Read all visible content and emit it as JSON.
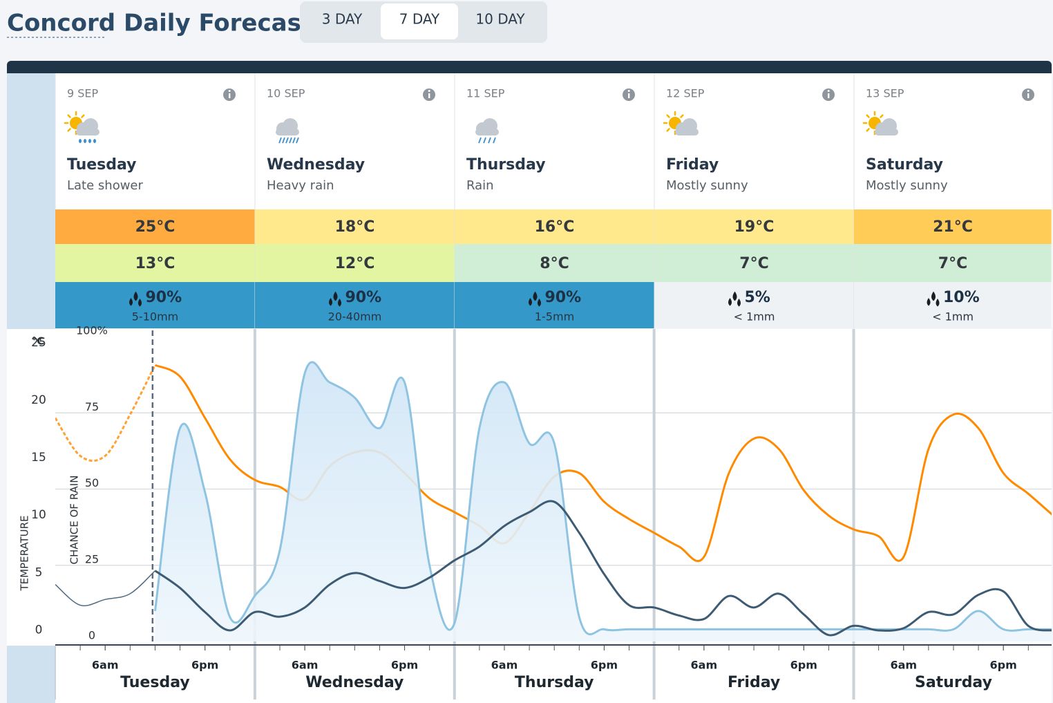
{
  "header": {
    "title": "Concord Daily Forecast",
    "tabs": [
      "3 DAY",
      "7 DAY",
      "10 DAY"
    ],
    "active_tab": 1
  },
  "days": [
    {
      "date": "9 SEP",
      "icon": "sun_cloud_rain",
      "name": "Tuesday",
      "description": "Late shower",
      "high": "25°C",
      "high_color": "#ffab40",
      "low": "13°C",
      "low_color": "#e3f5a1",
      "rain_chance": "90%",
      "rain_amount": "5-10mm",
      "rain_color": "#3498c9"
    },
    {
      "date": "10 SEP",
      "icon": "cloud_heavy_rain",
      "name": "Wednesday",
      "description": "Heavy rain",
      "high": "18°C",
      "high_color": "#ffe98c",
      "low": "12°C",
      "low_color": "#e3f5a1",
      "rain_chance": "90%",
      "rain_amount": "20-40mm",
      "rain_color": "#3498c9"
    },
    {
      "date": "11 SEP",
      "icon": "cloud_rain",
      "name": "Thursday",
      "description": "Rain",
      "high": "16°C",
      "high_color": "#ffe98c",
      "low": "8°C",
      "low_color": "#d0eed6",
      "rain_chance": "90%",
      "rain_amount": "1-5mm",
      "rain_color": "#3498c9"
    },
    {
      "date": "12 SEP",
      "icon": "sun_cloud",
      "name": "Friday",
      "description": "Mostly sunny",
      "high": "19°C",
      "high_color": "#ffe98c",
      "low": "7°C",
      "low_color": "#d0eed6",
      "rain_chance": "5%",
      "rain_amount": "< 1mm",
      "rain_color": "#eff2f5"
    },
    {
      "date": "13 SEP",
      "icon": "sun_cloud",
      "name": "Saturday",
      "description": "Mostly sunny",
      "high": "21°C",
      "high_color": "#ffcd57",
      "low": "7°C",
      "low_color": "#d0eed6",
      "rain_chance": "10%",
      "rain_amount": "< 1mm",
      "rain_color": "#eff2f5"
    }
  ],
  "chart_data": {
    "type": "line",
    "y_unit": "°C",
    "y_label": "TEMPERATURE",
    "y2_label": "CHANCE OF RAIN",
    "xlim": [
      0,
      119.8
    ],
    "ylim": [
      -0.4,
      26.8
    ],
    "yticks": [
      0,
      5,
      10,
      15,
      20,
      25
    ],
    "y2lim": [
      -0.9,
      101.6
    ],
    "y2ticks": [
      0,
      25,
      50,
      75,
      {
        "value": 100,
        "label": "100%"
      }
    ],
    "xticks": [
      {
        "value": 6,
        "label": "6am"
      },
      {
        "value": 18,
        "label": "6pm"
      },
      {
        "value": 30,
        "label": "6am"
      },
      {
        "value": 42,
        "label": "6pm"
      },
      {
        "value": 54,
        "label": "6am"
      },
      {
        "value": 66,
        "label": "6pm"
      },
      {
        "value": 78,
        "label": "6am"
      },
      {
        "value": 90,
        "label": "6pm"
      },
      {
        "value": 102,
        "label": "6am"
      },
      {
        "value": 114,
        "label": "6pm"
      }
    ],
    "day_labels": [
      {
        "value": 12,
        "label": "Tuesday"
      },
      {
        "value": 36,
        "label": "Wednesday"
      },
      {
        "value": 60,
        "label": "Thursday"
      },
      {
        "value": 84,
        "label": "Friday"
      },
      {
        "value": 108,
        "label": "Saturday"
      }
    ],
    "day_bounds": [
      24,
      48,
      72,
      96
    ],
    "now": 11.7,
    "grid": true,
    "x": [
      0,
      3,
      6,
      9,
      12,
      15,
      18,
      21,
      24,
      27,
      30,
      33,
      36,
      39,
      42,
      45,
      48,
      51,
      54,
      57,
      60,
      63,
      66,
      69,
      72,
      75,
      78,
      81,
      84,
      87,
      90,
      93,
      96,
      99,
      102,
      105,
      108,
      111,
      114,
      117,
      120
    ],
    "series": [
      {
        "key": "temperature",
        "color": "#ff8a00",
        "axis": "y",
        "values": [
          19.3,
          16.0,
          16.0,
          19.6,
          23.9,
          22.9,
          19.3,
          15.7,
          13.9,
          13.3,
          12.2,
          15.1,
          16.3,
          16.3,
          14.5,
          12.3,
          11.1,
          9.9,
          8.4,
          11.1,
          14.2,
          14.5,
          12.0,
          10.5,
          9.3,
          8.1,
          7.2,
          14.5,
          17.5,
          16.6,
          13.0,
          10.8,
          9.6,
          9.0,
          7.2,
          16.6,
          19.6,
          18.4,
          14.5,
          12.7,
          10.8
        ]
      },
      {
        "key": "rain_chance",
        "color": "#8ec4e2",
        "axis": "y2",
        "values": [
          null,
          null,
          null,
          null,
          10,
          70,
          49,
          8,
          15,
          30,
          88,
          85,
          80,
          70,
          85,
          25,
          6,
          70,
          85,
          65,
          65,
          8,
          4,
          4,
          4,
          4,
          4,
          4,
          4,
          4,
          4,
          4,
          4,
          4,
          4,
          4,
          4,
          10,
          4,
          4,
          4
        ]
      },
      {
        "key": "wind",
        "color": "#3e5b74",
        "axis": "y",
        "values": [
          4.8,
          3.0,
          3.5,
          4.0,
          6.0,
          4.5,
          2.4,
          0.8,
          2.4,
          2.0,
          2.8,
          4.8,
          5.8,
          5.1,
          4.5,
          5.4,
          6.9,
          8.1,
          9.9,
          11.1,
          12.0,
          9.3,
          5.7,
          3.0,
          2.8,
          2.1,
          1.8,
          3.8,
          2.8,
          4.0,
          2.2,
          0.4,
          1.2,
          0.8,
          1.0,
          2.4,
          2.2,
          3.9,
          4.2,
          1.2,
          0.8
        ]
      }
    ]
  }
}
